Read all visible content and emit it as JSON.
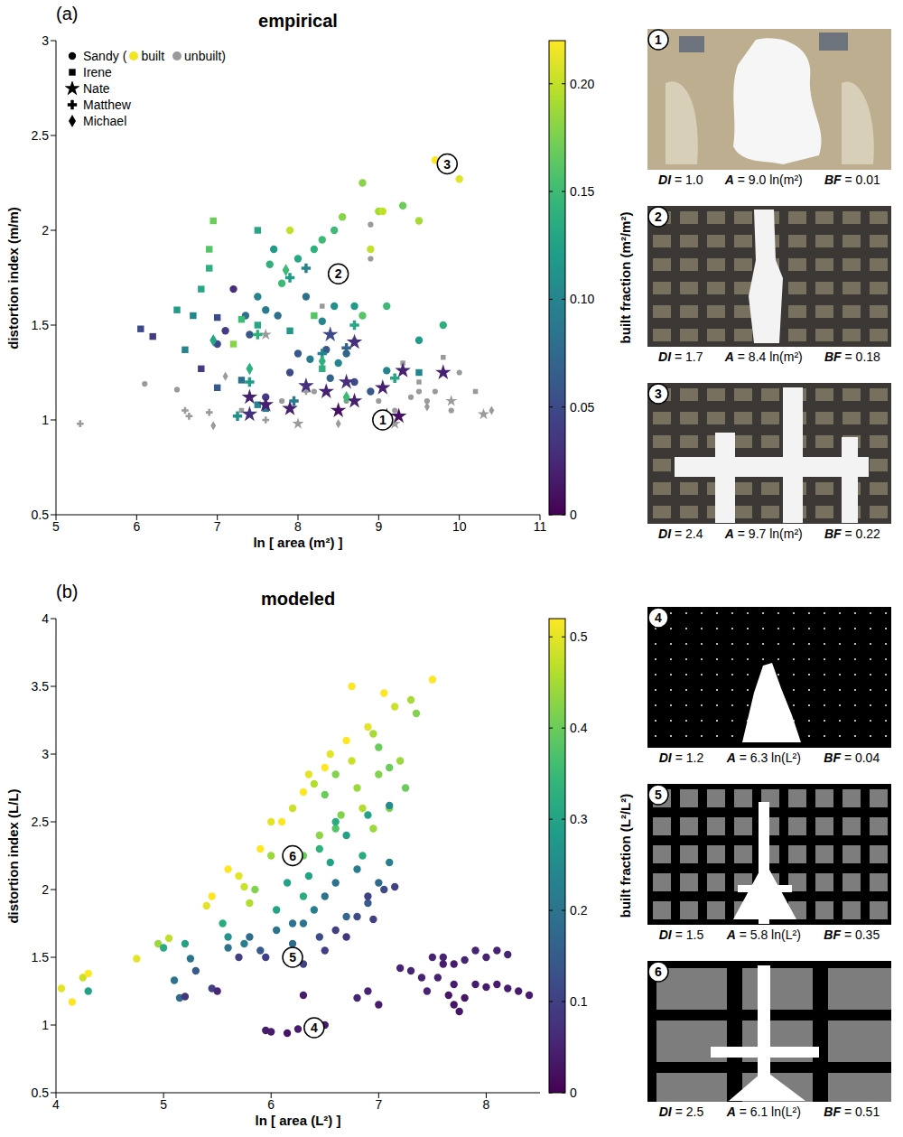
{
  "chart_data": [
    {
      "type": "scatter",
      "panel": "(a)",
      "title": "empirical",
      "x_label": "ln [ area (m²) ]",
      "y_label": "distortion index (m/m)",
      "xlim": [
        5,
        11
      ],
      "xticks": [
        5,
        6,
        7,
        8,
        9,
        10,
        11
      ],
      "ylim": [
        0.5,
        3
      ],
      "yticks": [
        0.5,
        1,
        1.5,
        2,
        2.5,
        3
      ],
      "colorbar": {
        "label": "built fraction (m²/m²)",
        "lim": [
          0,
          0.22
        ],
        "ticks": [
          0,
          0.05,
          {
            "value": 0.1,
            "label": "0.10"
          },
          0.15,
          {
            "value": 0.2,
            "label": "0.20"
          }
        ]
      },
      "legend": "upper left",
      "status_legend": {
        "prefix": "(",
        "built": "built",
        "unbuilt": "unbuilt",
        "suffix": ")",
        "built_color": "#f3e51e",
        "unbuilt_color": "#9a9a9a"
      },
      "series": [
        {
          "name": "Sandy",
          "marker": "circle",
          "x": [
            9.7,
            10.0,
            9.0,
            9.05,
            8.8,
            9.3,
            9.5,
            8.55,
            8.9,
            8.3,
            8.2,
            7.9,
            8.0,
            8.45,
            7.7,
            7.65,
            7.8,
            8.1,
            7.5,
            7.6,
            8.3,
            8.7,
            8.8,
            9.1,
            9.8,
            9.5,
            7.2,
            7.35,
            7.4,
            7.1,
            7.0,
            8.0,
            8.15,
            8.5,
            8.6,
            7.9,
            8.4,
            8.7,
            7.6,
            8.9,
            9.1,
            8.35,
            8.45,
            7.75,
            6.1,
            6.5,
            8.6,
            9.0,
            9.2,
            9.5,
            9.7,
            9.9,
            10.0,
            9.4,
            8.9,
            8.9,
            8.2,
            7.8,
            9.6
          ],
          "y": [
            2.37,
            2.27,
            2.1,
            2.1,
            2.25,
            2.13,
            2.05,
            2.07,
            1.9,
            1.95,
            1.9,
            2.0,
            1.85,
            2.0,
            1.9,
            1.82,
            1.72,
            1.65,
            1.65,
            1.58,
            1.52,
            1.6,
            1.55,
            1.6,
            1.5,
            1.42,
            1.69,
            1.55,
            1.45,
            1.47,
            1.4,
            1.35,
            1.32,
            1.3,
            1.35,
            1.25,
            1.22,
            1.2,
            1.12,
            1.15,
            1.26,
            1.37,
            1.6,
            1.55,
            1.19,
            1.16,
            1.1,
            1.1,
            1.05,
            1.15,
            1.15,
            1.05,
            1.25,
            1.12,
            2.03,
            1.85,
            1.15,
            1.1,
            1.1
          ],
          "built_fraction": [
            0.22,
            0.21,
            0.19,
            0.2,
            0.18,
            0.17,
            0.19,
            0.18,
            0.2,
            0.15,
            0.14,
            0.2,
            0.13,
            0.15,
            0.12,
            0.14,
            0.15,
            0.08,
            0.1,
            0.09,
            0.1,
            0.12,
            0.16,
            0.15,
            0.14,
            0.12,
            0.03,
            0.08,
            0.06,
            0.04,
            0.05,
            0.06,
            0.09,
            0.1,
            0.07,
            0.05,
            0.07,
            0.05,
            0.04,
            0.06,
            0.1,
            0.06,
            0.11,
            0.08,
            null,
            null,
            null,
            null,
            null,
            null,
            null,
            null,
            null,
            null,
            null,
            null,
            null,
            null,
            null
          ]
        },
        {
          "name": "Irene",
          "marker": "square",
          "x": [
            6.95,
            6.9,
            6.9,
            7.5,
            6.8,
            6.5,
            6.7,
            6.05,
            6.2,
            6.6,
            7.0,
            6.8,
            7.3,
            7.5,
            7.9,
            8.2,
            7.2,
            8.3,
            7.3,
            7.5,
            7.6,
            9.5,
            7.0,
            9.3,
            9.8,
            10.2,
            8.7,
            8.3,
            9.5,
            7.3
          ],
          "y": [
            2.05,
            1.9,
            1.8,
            2.0,
            1.69,
            1.58,
            1.55,
            1.48,
            1.44,
            1.37,
            1.54,
            1.27,
            1.53,
            1.5,
            1.47,
            1.55,
            1.4,
            1.27,
            1.21,
            1.08,
            1.06,
            1.25,
            1.17,
            1.3,
            1.33,
            1.15,
            1.42,
            1.6,
            1.2,
            1.05
          ],
          "built_fraction": [
            0.17,
            0.16,
            0.14,
            0.13,
            0.13,
            0.12,
            0.1,
            0.05,
            0.04,
            0.1,
            0.05,
            0.04,
            0.15,
            0.13,
            0.12,
            0.16,
            0.18,
            0.14,
            0.08,
            0.1,
            0.09,
            0.1,
            0.06,
            null,
            null,
            null,
            null,
            null,
            null,
            null
          ]
        },
        {
          "name": "Nate",
          "marker": "star",
          "x": [
            8.7,
            9.8,
            9.3,
            8.35,
            8.5,
            9.1,
            9.25,
            8.7,
            8.6,
            9.05,
            8.1,
            7.9,
            7.4,
            7.4,
            8.4,
            7.6,
            9.9,
            10.3,
            9.2,
            8.0,
            7.6
          ],
          "y": [
            1.41,
            1.25,
            1.26,
            1.15,
            1.05,
            1.02,
            1.02,
            1.1,
            1.2,
            1.17,
            1.18,
            1.06,
            1.12,
            1.03,
            1.45,
            1.08,
            1.1,
            1.03,
            0.98,
            0.98,
            1.45
          ],
          "built_fraction": [
            0.03,
            0.02,
            0.02,
            0.02,
            0.01,
            0.01,
            0.01,
            0.02,
            0.03,
            0.02,
            0.03,
            0.02,
            0.02,
            0.03,
            0.05,
            0.02,
            null,
            null,
            null,
            null,
            null
          ]
        },
        {
          "name": "Matthew",
          "marker": "plus",
          "x": [
            7.9,
            8.1,
            8.7,
            7.4,
            7.25,
            7.5,
            8.6,
            8.3,
            7.95,
            9.2,
            5.3,
            6.6,
            6.65,
            6.9,
            7.6,
            8.1
          ],
          "y": [
            1.75,
            1.8,
            1.5,
            1.2,
            1.02,
            1.45,
            1.38,
            1.35,
            1.1,
            1.22,
            0.98,
            1.05,
            1.02,
            1.04,
            1.0,
            1.15
          ],
          "built_fraction": [
            0.12,
            0.1,
            0.13,
            0.12,
            0.11,
            0.14,
            0.07,
            0.1,
            0.09,
            0.13,
            null,
            null,
            null,
            null,
            null,
            null
          ]
        },
        {
          "name": "Michael",
          "marker": "diamond",
          "x": [
            7.85,
            6.95,
            7.4,
            8.3,
            8.6,
            6.95,
            7.1,
            8.5,
            10.4,
            9.6
          ],
          "y": [
            1.79,
            1.42,
            1.27,
            1.31,
            1.12,
            0.97,
            1.23,
            0.98,
            1.05,
            1.07
          ],
          "built_fraction": [
            0.15,
            0.13,
            0.14,
            0.14,
            0.15,
            null,
            null,
            null,
            null,
            null
          ]
        }
      ],
      "insets": [
        {
          "number": 1,
          "x": 9.05,
          "y": 1.0,
          "caption": [
            {
              "key": "DI",
              "text": "= 1.0"
            },
            {
              "key": "A",
              "text": "= 9.0 ln(m²)"
            },
            {
              "key": "BF",
              "text": "= 0.01"
            }
          ]
        },
        {
          "number": 2,
          "x": 8.5,
          "y": 1.77,
          "caption": [
            {
              "key": "DI",
              "text": "= 1.7"
            },
            {
              "key": "A",
              "text": "= 8.4 ln(m²)"
            },
            {
              "key": "BF",
              "text": "= 0.18"
            }
          ]
        },
        {
          "number": 3,
          "x": 9.85,
          "y": 2.35,
          "caption": [
            {
              "key": "DI",
              "text": "= 2.4"
            },
            {
              "key": "A",
              "text": "= 9.7 ln(m²)"
            },
            {
              "key": "BF",
              "text": "= 0.22"
            }
          ]
        }
      ]
    },
    {
      "type": "scatter",
      "panel": "(b)",
      "title": "modeled",
      "x_label": "ln [ area (L²) ]",
      "y_label": "distortion index (L/L)",
      "xlim": [
        4,
        8.5
      ],
      "xticks": [
        4,
        5,
        6,
        7,
        8
      ],
      "ylim": [
        0.5,
        4
      ],
      "yticks": [
        0.5,
        1,
        1.5,
        2,
        2.5,
        3,
        3.5,
        4
      ],
      "colorbar": {
        "label": "built fraction (L²/L²)",
        "lim": [
          0,
          0.52
        ],
        "ticks": [
          0,
          0.1,
          0.2,
          0.3,
          0.4,
          0.5
        ]
      },
      "series": [
        {
          "marker": "circle",
          "x": [
            4.05,
            4.15,
            4.25,
            4.3,
            4.75,
            4.95,
            5.05,
            5.4,
            5.45,
            5.6,
            5.7,
            5.75,
            5.9,
            5.85,
            6.0,
            6.1,
            6.2,
            6.3,
            6.35,
            6.4,
            6.5,
            6.55,
            6.6,
            6.7,
            6.75,
            6.8,
            6.9,
            6.95,
            7.0,
            7.05,
            7.1,
            7.15,
            7.2,
            7.25,
            7.3,
            7.35,
            7.5,
            7.0,
            6.85,
            6.65,
            6.45,
            6.3,
            6.2,
            6.0,
            5.8,
            6.5,
            6.75,
            6.95,
            7.1,
            6.6,
            4.3,
            5.0,
            5.2,
            5.55,
            5.6,
            6.05,
            6.15,
            6.3,
            6.35,
            6.45,
            6.55,
            6.7,
            6.85,
            6.9,
            7.1,
            6.6,
            5.15,
            5.25,
            5.3,
            5.1,
            5.6,
            5.75,
            5.8,
            5.9,
            6.05,
            6.2,
            6.3,
            6.4,
            6.5,
            6.6,
            6.8,
            6.9,
            7.0,
            7.1,
            6.2,
            6.7,
            5.45,
            5.7,
            5.95,
            6.3,
            6.45,
            6.6,
            6.8,
            6.9,
            7.05,
            7.15,
            6.95,
            6.5,
            6.7,
            5.95,
            6.0,
            6.15,
            6.25,
            6.35,
            6.5,
            6.3,
            6.8,
            6.9,
            7.0,
            7.2,
            7.3,
            7.4,
            7.5,
            7.6,
            7.7,
            7.8,
            7.9,
            8.0,
            8.1,
            8.2,
            7.55,
            7.45,
            7.65,
            7.7,
            7.75,
            7.8,
            7.9,
            8.0,
            8.1,
            8.2,
            8.3,
            8.4,
            7.6,
            7.7,
            5.5,
            5.2
          ],
          "y": [
            1.27,
            1.17,
            1.35,
            1.38,
            1.49,
            1.6,
            1.64,
            1.88,
            1.95,
            2.15,
            2.1,
            2.02,
            2.3,
            2.0,
            2.5,
            2.5,
            2.6,
            2.72,
            2.85,
            2.78,
            2.9,
            3.0,
            2.85,
            3.1,
            3.5,
            2.75,
            3.2,
            3.15,
            3.05,
            3.45,
            2.6,
            3.35,
            2.95,
            2.75,
            3.4,
            3.3,
            3.55,
            2.85,
            2.6,
            2.55,
            2.4,
            2.25,
            2.2,
            2.25,
            1.9,
            2.7,
            2.95,
            2.45,
            2.9,
            2.45,
            1.25,
            1.57,
            1.6,
            1.75,
            1.65,
            1.85,
            2.05,
            1.95,
            2.1,
            2.3,
            2.2,
            2.4,
            2.25,
            2.55,
            2.62,
            2.5,
            1.2,
            1.49,
            1.4,
            1.33,
            1.57,
            1.6,
            1.65,
            1.55,
            1.7,
            1.6,
            1.75,
            1.85,
            1.95,
            2.05,
            2.15,
            1.9,
            2.05,
            2.2,
            1.75,
            1.8,
            1.27,
            1.5,
            1.5,
            1.45,
            1.65,
            1.7,
            1.8,
            1.95,
            2.0,
            2.02,
            1.78,
            1.55,
            1.65,
            0.96,
            0.95,
            0.94,
            0.97,
            1.0,
            1.0,
            1.22,
            1.2,
            1.25,
            1.15,
            1.42,
            1.4,
            1.35,
            1.5,
            1.5,
            1.45,
            1.48,
            1.55,
            1.5,
            1.55,
            1.52,
            1.35,
            1.25,
            1.22,
            1.15,
            1.1,
            1.2,
            1.3,
            1.28,
            1.3,
            1.27,
            1.25,
            1.22,
            1.45,
            1.3,
            1.25,
            1.21
          ],
          "built_fraction": [
            0.5,
            0.52,
            0.48,
            0.52,
            0.5,
            0.44,
            0.47,
            0.5,
            0.52,
            0.52,
            0.5,
            0.48,
            0.52,
            0.42,
            0.5,
            0.52,
            0.48,
            0.52,
            0.5,
            0.46,
            0.52,
            0.5,
            0.42,
            0.52,
            0.52,
            0.44,
            0.5,
            0.45,
            0.4,
            0.52,
            0.42,
            0.48,
            0.44,
            0.4,
            0.45,
            0.42,
            0.52,
            0.42,
            0.46,
            0.42,
            0.43,
            0.4,
            0.38,
            0.44,
            0.46,
            0.4,
            0.48,
            0.44,
            0.4,
            0.38,
            0.3,
            0.32,
            0.3,
            0.32,
            0.27,
            0.3,
            0.3,
            0.32,
            0.3,
            0.33,
            0.3,
            0.3,
            0.32,
            0.3,
            0.25,
            0.32,
            0.18,
            0.2,
            0.15,
            0.2,
            0.2,
            0.22,
            0.18,
            0.15,
            0.2,
            0.18,
            0.2,
            0.22,
            0.2,
            0.2,
            0.22,
            0.15,
            0.18,
            0.22,
            0.2,
            0.18,
            0.1,
            0.1,
            0.1,
            0.1,
            0.12,
            0.1,
            0.12,
            0.1,
            0.12,
            0.1,
            0.1,
            0.1,
            0.08,
            0.04,
            0.04,
            0.03,
            0.04,
            0.03,
            0.04,
            0.04,
            0.05,
            0.05,
            0.04,
            0.05,
            0.05,
            0.05,
            0.05,
            0.05,
            0.04,
            0.05,
            0.05,
            0.05,
            0.05,
            0.05,
            0.05,
            0.05,
            0.03,
            0.03,
            0.03,
            0.03,
            0.04,
            0.04,
            0.04,
            0.04,
            0.04,
            0.04,
            0.04,
            0.04,
            0.06,
            0.08
          ]
        }
      ],
      "insets": [
        {
          "number": 4,
          "x": 6.4,
          "y": 0.98,
          "caption": [
            {
              "key": "DI",
              "text": "= 1.2"
            },
            {
              "key": "A",
              "text": "= 6.3 ln(L²)"
            },
            {
              "key": "BF",
              "text": "= 0.04"
            }
          ]
        },
        {
          "number": 5,
          "x": 6.2,
          "y": 1.5,
          "caption": [
            {
              "key": "DI",
              "text": "= 1.5"
            },
            {
              "key": "A",
              "text": "= 5.8 ln(L²)"
            },
            {
              "key": "BF",
              "text": "= 0.35"
            }
          ]
        },
        {
          "number": 6,
          "x": 6.2,
          "y": 2.25,
          "caption": [
            {
              "key": "DI",
              "text": "= 2.5"
            },
            {
              "key": "A",
              "text": "= 6.1 ln(L²)"
            },
            {
              "key": "BF",
              "text": "= 0.51"
            }
          ]
        }
      ]
    }
  ]
}
